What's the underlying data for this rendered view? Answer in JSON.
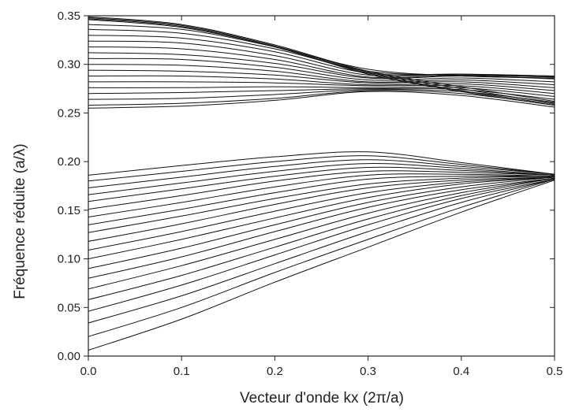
{
  "chart_data": {
    "type": "line",
    "title": "",
    "xlabel": "Vecteur d'onde kx (2π/a)",
    "ylabel": "Fréquence réduite (a/λ)",
    "xlim": [
      0,
      0.5
    ],
    "ylim": [
      0,
      0.35
    ],
    "x_ticks": [
      "0.0",
      "0.1",
      "0.2",
      "0.3",
      "0.4",
      "0.5"
    ],
    "y_ticks": [
      "0.00",
      "0.05",
      "0.10",
      "0.15",
      "0.20",
      "0.25",
      "0.30",
      "0.35"
    ],
    "grid": false,
    "line_color": "#111111",
    "series": [
      {
        "group": "lower",
        "x": [
          0,
          0.1,
          0.2,
          0.3,
          0.4,
          0.5
        ],
        "y": [
          0.006,
          0.038,
          0.076,
          0.112,
          0.148,
          0.181
        ]
      },
      {
        "group": "lower",
        "x": [
          0,
          0.1,
          0.2,
          0.3,
          0.4,
          0.5
        ],
        "y": [
          0.02,
          0.05,
          0.086,
          0.12,
          0.153,
          0.182
        ]
      },
      {
        "group": "lower",
        "x": [
          0,
          0.1,
          0.2,
          0.3,
          0.4,
          0.5
        ],
        "y": [
          0.034,
          0.062,
          0.095,
          0.128,
          0.158,
          0.182
        ]
      },
      {
        "group": "lower",
        "x": [
          0,
          0.1,
          0.2,
          0.3,
          0.4,
          0.5
        ],
        "y": [
          0.046,
          0.073,
          0.104,
          0.135,
          0.162,
          0.182
        ]
      },
      {
        "group": "lower",
        "x": [
          0,
          0.1,
          0.2,
          0.3,
          0.4,
          0.5
        ],
        "y": [
          0.058,
          0.083,
          0.112,
          0.141,
          0.165,
          0.183
        ]
      },
      {
        "group": "lower",
        "x": [
          0,
          0.1,
          0.2,
          0.3,
          0.4,
          0.5
        ],
        "y": [
          0.069,
          0.093,
          0.12,
          0.147,
          0.168,
          0.183
        ]
      },
      {
        "group": "lower",
        "x": [
          0,
          0.1,
          0.2,
          0.3,
          0.4,
          0.5
        ],
        "y": [
          0.08,
          0.102,
          0.128,
          0.153,
          0.171,
          0.183
        ]
      },
      {
        "group": "lower",
        "x": [
          0,
          0.1,
          0.2,
          0.3,
          0.4,
          0.5
        ],
        "y": [
          0.09,
          0.111,
          0.135,
          0.158,
          0.174,
          0.184
        ]
      },
      {
        "group": "lower",
        "x": [
          0,
          0.1,
          0.2,
          0.3,
          0.4,
          0.5
        ],
        "y": [
          0.1,
          0.12,
          0.142,
          0.163,
          0.177,
          0.184
        ]
      },
      {
        "group": "lower",
        "x": [
          0,
          0.1,
          0.2,
          0.3,
          0.4,
          0.5
        ],
        "y": [
          0.109,
          0.128,
          0.149,
          0.168,
          0.179,
          0.184
        ]
      },
      {
        "group": "lower",
        "x": [
          0,
          0.1,
          0.2,
          0.3,
          0.4,
          0.5
        ],
        "y": [
          0.118,
          0.136,
          0.156,
          0.173,
          0.181,
          0.184
        ]
      },
      {
        "group": "lower",
        "x": [
          0,
          0.1,
          0.2,
          0.3,
          0.4,
          0.5
        ],
        "y": [
          0.127,
          0.144,
          0.162,
          0.177,
          0.183,
          0.185
        ]
      },
      {
        "group": "lower",
        "x": [
          0,
          0.1,
          0.2,
          0.3,
          0.4,
          0.5
        ],
        "y": [
          0.135,
          0.151,
          0.168,
          0.182,
          0.185,
          0.185
        ]
      },
      {
        "group": "lower",
        "x": [
          0,
          0.1,
          0.2,
          0.3,
          0.4,
          0.5
        ],
        "y": [
          0.143,
          0.158,
          0.174,
          0.186,
          0.187,
          0.185
        ]
      },
      {
        "group": "lower",
        "x": [
          0,
          0.1,
          0.2,
          0.3,
          0.4,
          0.5
        ],
        "y": [
          0.151,
          0.165,
          0.18,
          0.19,
          0.189,
          0.186
        ]
      },
      {
        "group": "lower",
        "x": [
          0,
          0.1,
          0.2,
          0.3,
          0.4,
          0.5
        ],
        "y": [
          0.159,
          0.172,
          0.185,
          0.194,
          0.191,
          0.186
        ]
      },
      {
        "group": "lower",
        "x": [
          0,
          0.1,
          0.2,
          0.3,
          0.4,
          0.5
        ],
        "y": [
          0.166,
          0.178,
          0.19,
          0.198,
          0.193,
          0.186
        ]
      },
      {
        "group": "lower",
        "x": [
          0,
          0.1,
          0.2,
          0.3,
          0.4,
          0.5
        ],
        "y": [
          0.173,
          0.184,
          0.195,
          0.202,
          0.195,
          0.187
        ]
      },
      {
        "group": "lower",
        "x": [
          0,
          0.1,
          0.2,
          0.3,
          0.4,
          0.5
        ],
        "y": [
          0.18,
          0.19,
          0.2,
          0.206,
          0.197,
          0.187
        ]
      },
      {
        "group": "lower",
        "x": [
          0,
          0.1,
          0.2,
          0.3,
          0.4,
          0.5
        ],
        "y": [
          0.186,
          0.196,
          0.205,
          0.21,
          0.199,
          0.187
        ]
      },
      {
        "group": "upper",
        "x": [
          0,
          0.1,
          0.2,
          0.3,
          0.4,
          0.5
        ],
        "y": [
          0.255,
          0.257,
          0.263,
          0.272,
          0.268,
          0.256
        ]
      },
      {
        "group": "upper",
        "x": [
          0,
          0.1,
          0.2,
          0.3,
          0.4,
          0.5
        ],
        "y": [
          0.258,
          0.26,
          0.265,
          0.273,
          0.27,
          0.258
        ]
      },
      {
        "group": "upper",
        "x": [
          0,
          0.1,
          0.2,
          0.3,
          0.4,
          0.5
        ],
        "y": [
          0.264,
          0.265,
          0.269,
          0.274,
          0.272,
          0.261
        ]
      },
      {
        "group": "upper",
        "x": [
          0,
          0.1,
          0.2,
          0.3,
          0.4,
          0.5
        ],
        "y": [
          0.27,
          0.271,
          0.273,
          0.275,
          0.274,
          0.264
        ]
      },
      {
        "group": "upper",
        "x": [
          0,
          0.1,
          0.2,
          0.3,
          0.4,
          0.5
        ],
        "y": [
          0.276,
          0.276,
          0.277,
          0.276,
          0.276,
          0.267
        ]
      },
      {
        "group": "upper",
        "x": [
          0,
          0.1,
          0.2,
          0.3,
          0.4,
          0.5
        ],
        "y": [
          0.282,
          0.282,
          0.281,
          0.278,
          0.278,
          0.27
        ]
      },
      {
        "group": "upper",
        "x": [
          0,
          0.1,
          0.2,
          0.3,
          0.4,
          0.5
        ],
        "y": [
          0.288,
          0.288,
          0.285,
          0.279,
          0.28,
          0.273
        ]
      },
      {
        "group": "upper",
        "x": [
          0,
          0.1,
          0.2,
          0.3,
          0.4,
          0.5
        ],
        "y": [
          0.294,
          0.293,
          0.289,
          0.281,
          0.282,
          0.276
        ]
      },
      {
        "group": "upper",
        "x": [
          0,
          0.1,
          0.2,
          0.3,
          0.4,
          0.5
        ],
        "y": [
          0.3,
          0.299,
          0.293,
          0.282,
          0.284,
          0.279
        ]
      },
      {
        "group": "upper",
        "x": [
          0,
          0.1,
          0.2,
          0.3,
          0.4,
          0.5
        ],
        "y": [
          0.306,
          0.305,
          0.297,
          0.284,
          0.286,
          0.282
        ]
      },
      {
        "group": "upper",
        "x": [
          0,
          0.1,
          0.2,
          0.3,
          0.4,
          0.5
        ],
        "y": [
          0.312,
          0.31,
          0.301,
          0.286,
          0.288,
          0.285
        ]
      },
      {
        "group": "upper",
        "x": [
          0,
          0.1,
          0.2,
          0.3,
          0.4,
          0.5
        ],
        "y": [
          0.318,
          0.316,
          0.305,
          0.287,
          0.289,
          0.287
        ]
      },
      {
        "group": "upper",
        "x": [
          0,
          0.1,
          0.2,
          0.3,
          0.4,
          0.5
        ],
        "y": [
          0.324,
          0.322,
          0.309,
          0.289,
          0.29,
          0.288
        ]
      },
      {
        "group": "upper",
        "x": [
          0,
          0.1,
          0.2,
          0.3,
          0.4,
          0.5
        ],
        "y": [
          0.33,
          0.327,
          0.313,
          0.291,
          0.29,
          0.288
        ]
      },
      {
        "group": "upper",
        "x": [
          0,
          0.1,
          0.2,
          0.3,
          0.4,
          0.5
        ],
        "y": [
          0.336,
          0.332,
          0.316,
          0.293,
          0.289,
          0.287
        ]
      },
      {
        "group": "upper",
        "x": [
          0,
          0.1,
          0.2,
          0.3,
          0.4,
          0.5
        ],
        "y": [
          0.341,
          0.336,
          0.318,
          0.295,
          0.288,
          0.286
        ]
      },
      {
        "group": "upper",
        "x": [
          0,
          0.1,
          0.2,
          0.3,
          0.4,
          0.5
        ],
        "y": [
          0.346,
          0.338,
          0.318,
          0.29,
          0.272,
          0.258
        ]
      },
      {
        "group": "upper",
        "x": [
          0,
          0.1,
          0.2,
          0.3,
          0.4,
          0.5
        ],
        "y": [
          0.347,
          0.339,
          0.318,
          0.291,
          0.273,
          0.259
        ]
      },
      {
        "group": "upper",
        "x": [
          0,
          0.1,
          0.2,
          0.3,
          0.4,
          0.5
        ],
        "y": [
          0.348,
          0.34,
          0.319,
          0.292,
          0.275,
          0.26
        ]
      },
      {
        "group": "upper",
        "x": [
          0,
          0.1,
          0.2,
          0.3,
          0.4,
          0.5
        ],
        "y": [
          0.349,
          0.341,
          0.32,
          0.293,
          0.277,
          0.262
        ]
      }
    ]
  }
}
